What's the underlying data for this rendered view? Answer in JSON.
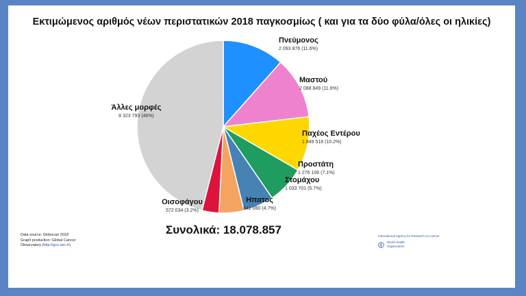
{
  "title": "Εκτιμώμενος αριθμός νέων περιστατικών 2018 παγκοσμίως ( και για τα δύο φύλα/όλες οι ηλικίες)",
  "total_text": "Συνολικά: 18.078.857",
  "source": {
    "line1": "Data source: Globocan 2018",
    "line2": "Graph production: Global Cancer",
    "line3_prefix": "Observatory (",
    "line3_link": "http://gco.iarc.fr",
    "line3_suffix": ")"
  },
  "logos": {
    "iarc_text": "International Agency for Research on Cancer",
    "who_line1": "World Health",
    "who_line2": "Organization"
  },
  "chart_data": {
    "type": "pie",
    "title": "Εκτιμώμενος αριθμός νέων περιστατικών 2018 παγκοσμίως ( και για τα δύο φύλα/όλες οι ηλικίες)",
    "slices": [
      {
        "label": "Πνεύμονος",
        "value": 2093876,
        "value_text": "2 093 876 (11.6%)",
        "percent": 11.6,
        "color": "#1e90ff"
      },
      {
        "label": "Μαστού",
        "value": 2088849,
        "value_text": "2 088 849 (11.6%)",
        "percent": 11.6,
        "color": "#ee82cf"
      },
      {
        "label": "Παχέος Εντέρου",
        "value": 1849518,
        "value_text": "1 849 518 (10.2%)",
        "percent": 10.2,
        "color": "#ffd700"
      },
      {
        "label": "Προστάτη",
        "value": 1276106,
        "value_text": "1 276 106 (7.1%)",
        "percent": 7.1,
        "color": "#1f9c5f"
      },
      {
        "label": "Στομάχου",
        "value": 1033701,
        "value_text": "1 033 701 (5.7%)",
        "percent": 5.7,
        "color": "#4682b4"
      },
      {
        "label": "Ηπατος",
        "value": 841080,
        "value_text": "841 080 (4.7%)",
        "percent": 4.7,
        "color": "#f4a460"
      },
      {
        "label": "Οισοφάγου",
        "value": 572034,
        "value_text": "572 034 (3.2%)",
        "percent": 3.2,
        "color": "#dc143c"
      },
      {
        "label": "Άλλες μορφές",
        "value": 8323793,
        "value_text": "8 323 793 (46%)",
        "percent": 46,
        "color": "#d3d3d3"
      }
    ]
  }
}
